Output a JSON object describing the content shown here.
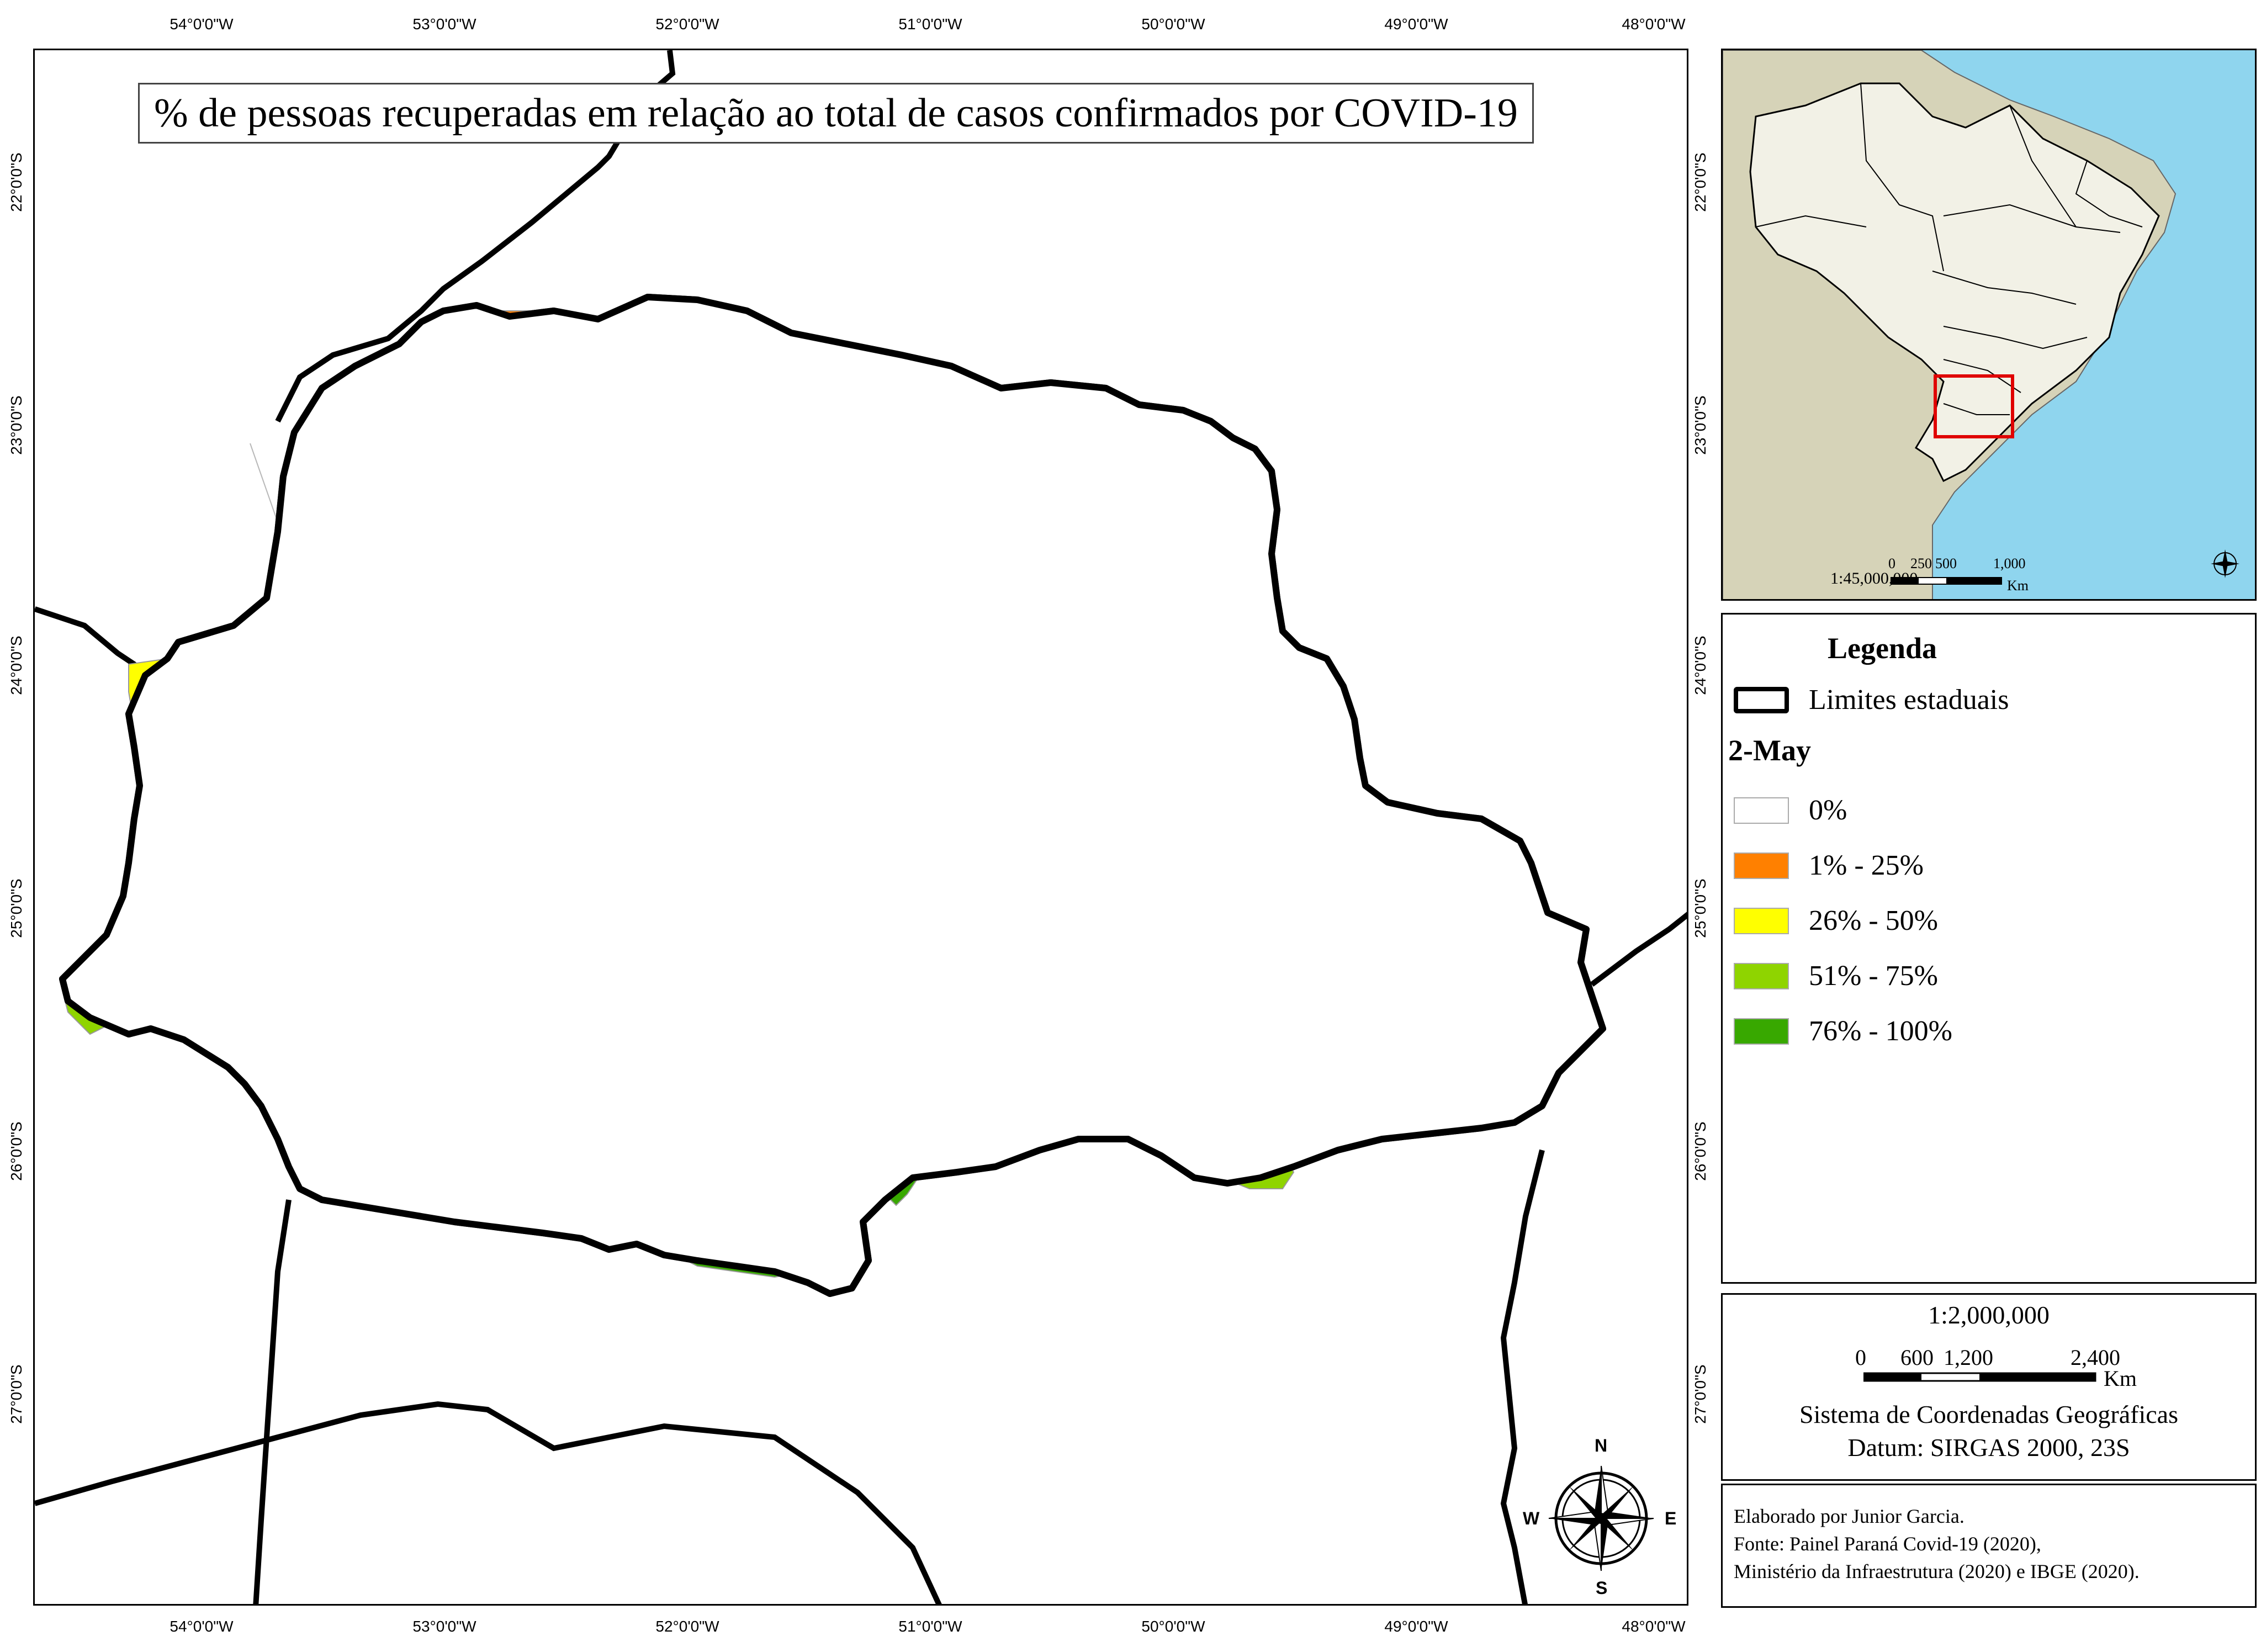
{
  "map": {
    "title": "% de pessoas recuperadas em relação ao total de casos confirmados por COVID-19",
    "longitude_ticks": [
      "54°0'0\"W",
      "53°0'0\"W",
      "52°0'0\"W",
      "51°0'0\"W",
      "50°0'0\"W",
      "49°0'0\"W",
      "48°0'0\"W"
    ],
    "latitude_ticks": [
      "22°0'0\"S",
      "23°0'0\"S",
      "24°0'0\"S",
      "25°0'0\"S",
      "26°0'0\"S",
      "27°0'0\"S"
    ],
    "compass": {
      "north": "N",
      "south": "S",
      "east": "E",
      "west": "W"
    }
  },
  "legend": {
    "title": "Legenda",
    "state_limits_label": "Limites estaduais",
    "date_label": "2-May",
    "classes": [
      {
        "label": "0%",
        "color": "#ffffff"
      },
      {
        "label": "1% - 25%",
        "color": "#ff8000"
      },
      {
        "label": "26% - 50%",
        "color": "#ffff00"
      },
      {
        "label": "51% - 75%",
        "color": "#8fd400"
      },
      {
        "label": "76% - 100%",
        "color": "#38a800"
      }
    ]
  },
  "inset": {
    "scale_label": "1:45,000,000",
    "scale_ticks": [
      "0",
      "250",
      "500",
      "1,000"
    ],
    "unit": "Km",
    "ocean_color": "#8fd5ee",
    "land_color": "#d6d3b8",
    "brazil_color": "#f2f1e6",
    "highlight_color": "#e00000"
  },
  "scale": {
    "ratio": "1:2,000,000",
    "ticks": [
      "0",
      "600",
      "1,200",
      "2,400"
    ],
    "unit": "Km",
    "system": "Sistema de Coordenadas Geográficas",
    "datum": "Datum: SIRGAS 2000, 23S"
  },
  "credits": {
    "line1": "Elaborado por Junior Garcia.",
    "line2": "Fonte: Painel Paraná Covid-19 (2020),",
    "line3": "Ministério da Infraestrutura (2020) e IBGE (2020)."
  }
}
